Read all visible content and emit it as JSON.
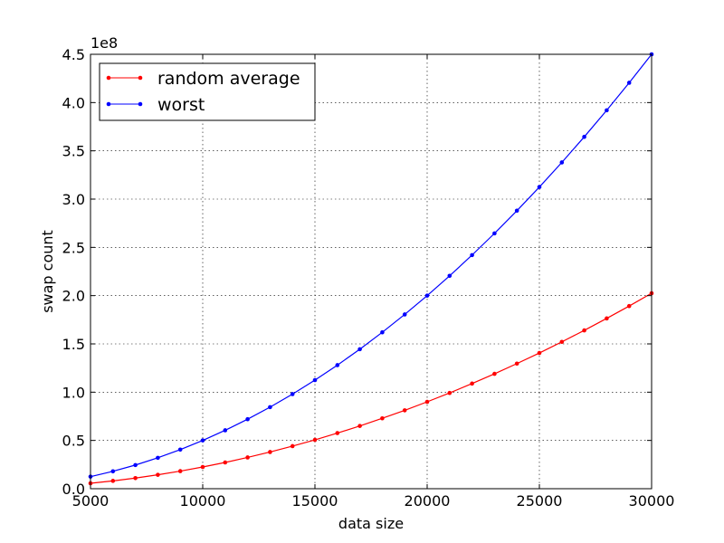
{
  "chart_data": {
    "type": "line",
    "title": "",
    "xlabel": "data size",
    "ylabel": "swap count",
    "y_offset_label": "1e8",
    "xlim": [
      5000,
      30000
    ],
    "ylim": [
      0,
      4.5
    ],
    "y_scale_factor": 100000000,
    "grid": true,
    "legend_position": "top-left",
    "x_ticks": [
      5000,
      10000,
      15000,
      20000,
      25000,
      30000
    ],
    "x_tick_labels": [
      "5000",
      "10000",
      "15000",
      "20000",
      "25000",
      "30000"
    ],
    "y_ticks": [
      0.0,
      0.5,
      1.0,
      1.5,
      2.0,
      2.5,
      3.0,
      3.5,
      4.0,
      4.5
    ],
    "y_tick_labels": [
      "0.0",
      "0.5",
      "1.0",
      "1.5",
      "2.0",
      "2.5",
      "3.0",
      "3.5",
      "4.0",
      "4.5"
    ],
    "x": [
      5000,
      6000,
      7000,
      8000,
      9000,
      10000,
      11000,
      12000,
      13000,
      14000,
      15000,
      16000,
      17000,
      18000,
      19000,
      20000,
      21000,
      22000,
      23000,
      24000,
      25000,
      26000,
      27000,
      28000,
      29000,
      30000
    ],
    "series": [
      {
        "name": "random average",
        "color": "#ff0000",
        "values": [
          0.056,
          0.081,
          0.11,
          0.144,
          0.182,
          0.225,
          0.272,
          0.324,
          0.38,
          0.441,
          0.506,
          0.576,
          0.65,
          0.729,
          0.812,
          0.9,
          0.992,
          1.089,
          1.19,
          1.296,
          1.406,
          1.521,
          1.64,
          1.764,
          1.892,
          2.025
        ]
      },
      {
        "name": "worst",
        "color": "#0000ff",
        "values": [
          0.125,
          0.18,
          0.245,
          0.32,
          0.405,
          0.5,
          0.605,
          0.72,
          0.845,
          0.98,
          1.125,
          1.28,
          1.445,
          1.62,
          1.805,
          2.0,
          2.205,
          2.42,
          2.645,
          2.88,
          3.125,
          3.38,
          3.645,
          3.92,
          4.205,
          4.5
        ]
      }
    ]
  }
}
